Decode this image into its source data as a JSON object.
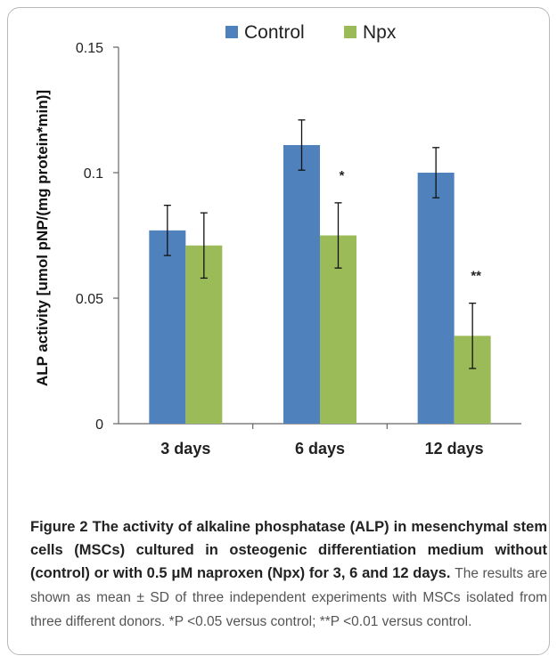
{
  "chart_data": {
    "type": "bar",
    "categories": [
      "3 days",
      "6 days",
      "12 days"
    ],
    "series": [
      {
        "name": "Control",
        "color": "#4f81bd",
        "values": [
          0.077,
          0.111,
          0.1
        ],
        "errors": [
          0.01,
          0.01,
          0.01
        ],
        "significance": [
          "",
          "",
          ""
        ]
      },
      {
        "name": "Npx",
        "color": "#9bbb59",
        "values": [
          0.071,
          0.075,
          0.035
        ],
        "errors": [
          0.013,
          0.013,
          0.013
        ],
        "significance": [
          "",
          "*",
          "**"
        ]
      }
    ],
    "ylabel": "ALP activity [umol pNP/(mg protein*min)]",
    "ylim": [
      0,
      0.15
    ],
    "yticks": [
      "0",
      "0.05",
      "0.1",
      "0.15"
    ],
    "yticks_values": [
      0,
      0.05,
      0.1,
      0.15
    ],
    "legend_position": "top"
  },
  "caption": {
    "bold": "Figure 2 The activity of alkaline phosphatase (ALP) in mesenchymal stem cells (MSCs) cultured in osteogenic differentiation medium without (control) or with 0.5 μM naproxen (Npx) for 3, 6 and 12 days.",
    "body": "The results are shown as mean ± SD of three independent experiments with MSCs isolated from three different donors. *P <0.05 versus control; **P <0.01 versus control."
  }
}
